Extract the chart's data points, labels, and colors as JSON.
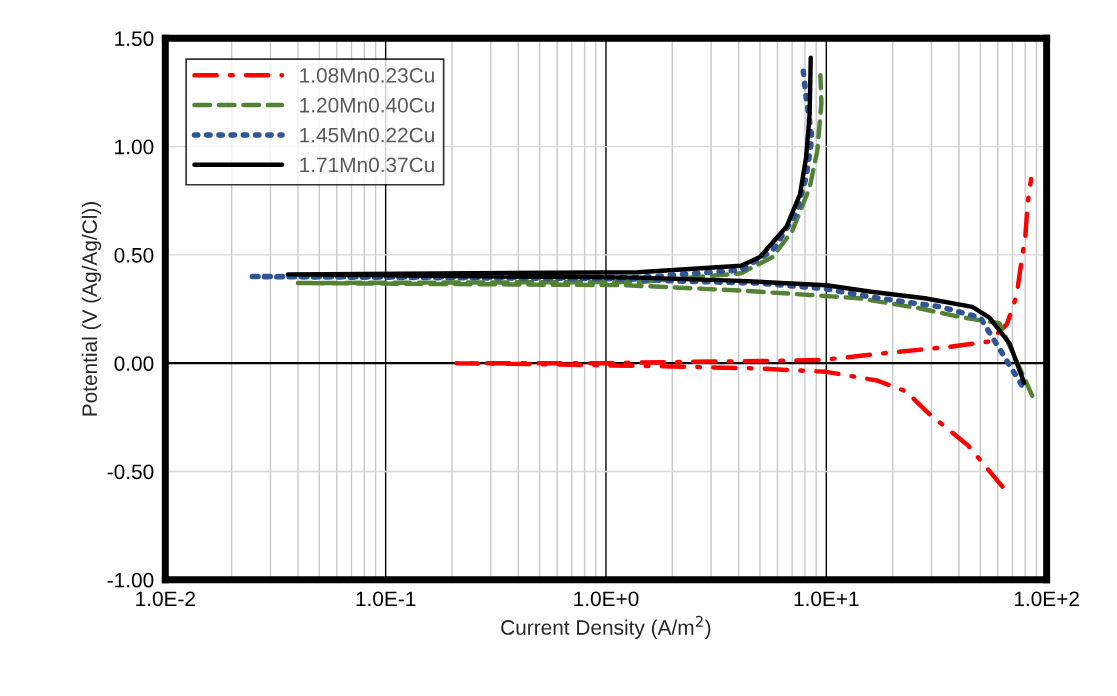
{
  "chart_data": {
    "type": "line",
    "xlabel": "Current Density (A/m$^{2}$)",
    "ylabel": "Potential (V (Ag/Ag/Cl))",
    "log": "x",
    "grid": true,
    "legend": "top left",
    "marker": "none",
    "xlim": [
      0.01,
      100
    ],
    "xticks": [
      {
        "value": 0.01,
        "label": "1.0E-2"
      },
      {
        "value": 0.1,
        "label": "1.0E-1"
      },
      {
        "value": 1,
        "label": "1.0E+0"
      },
      {
        "value": 10,
        "label": "1.0E+1"
      },
      {
        "value": 100,
        "label": "1.0E+2"
      }
    ],
    "ylim": [
      -1.0,
      1.5
    ],
    "yticks": [
      {
        "value": -1.0,
        "label": "-1.00"
      },
      {
        "value": -0.5,
        "label": "-0.50"
      },
      {
        "value": 0,
        "label": "0.00"
      },
      {
        "value": 0.5,
        "label": "0.50"
      },
      {
        "value": 1.0,
        "label": "1.00"
      },
      {
        "value": 1.5,
        "label": "1.50"
      }
    ],
    "ref_lines": [
      {
        "axis": "y",
        "value": 0,
        "label": null,
        "color": "#000000"
      }
    ],
    "series": [
      {
        "name": "1.08Mn0.23Cu",
        "color": "#ff0000",
        "line_style": "dashdot",
        "x": [
          63,
          44,
          29,
          23,
          17,
          10,
          5,
          2,
          1,
          0.5,
          0.21,
          0.5,
          1,
          2,
          5,
          9.6,
          20,
          36,
          55,
          66,
          73,
          77,
          80,
          82,
          85
        ],
        "values": [
          -0.57,
          -0.38,
          -0.23,
          -0.13,
          -0.08,
          -0.04,
          -0.025,
          -0.015,
          -0.01,
          -0.005,
          0.0,
          0.0,
          0.0,
          0.005,
          0.01,
          0.015,
          0.05,
          0.075,
          0.1,
          0.18,
          0.31,
          0.475,
          0.58,
          0.74,
          0.85
        ]
      },
      {
        "name": "1.20Mn0.40Cu",
        "color": "#548235",
        "line_style": "dashed",
        "x": [
          86,
          61,
          42,
          26,
          14,
          8.4,
          4.1,
          2.0,
          1.24,
          0.04,
          1.43,
          4.1,
          5.7,
          7.0,
          8.4,
          9.1,
          9.5,
          9.4
        ],
        "values": [
          -0.15,
          0.185,
          0.21,
          0.255,
          0.3,
          0.315,
          0.335,
          0.35,
          0.36,
          0.37,
          0.375,
          0.415,
          0.49,
          0.61,
          0.81,
          0.98,
          1.2,
          1.33
        ]
      },
      {
        "name": "1.45Mn0.22Cu",
        "color": "#2f5597",
        "line_style": "dotted",
        "x": [
          77,
          50,
          33,
          16,
          9.7,
          4.8,
          2.0,
          1.24,
          0.024,
          1.4,
          4.1,
          5.7,
          7.3,
          8.1,
          8.6,
          8.1,
          7.8
        ],
        "values": [
          -0.1,
          0.21,
          0.26,
          0.305,
          0.345,
          0.37,
          0.38,
          0.39,
          0.4,
          0.395,
          0.43,
          0.52,
          0.69,
          0.86,
          1.04,
          1.23,
          1.38
        ]
      },
      {
        "name": "1.71Mn0.37Cu",
        "color": "#000000",
        "line_style": "solid",
        "x": [
          79,
          68,
          55,
          46,
          28,
          16,
          10,
          4.1,
          1.4,
          0.036,
          1.4,
          4.1,
          5.0,
          6.6,
          7.6,
          8.1,
          8.4,
          8.5
        ],
        "values": [
          -0.09,
          0.09,
          0.21,
          0.26,
          0.3,
          0.33,
          0.36,
          0.38,
          0.395,
          0.41,
          0.42,
          0.45,
          0.49,
          0.63,
          0.78,
          0.95,
          1.15,
          1.41
        ]
      }
    ]
  }
}
